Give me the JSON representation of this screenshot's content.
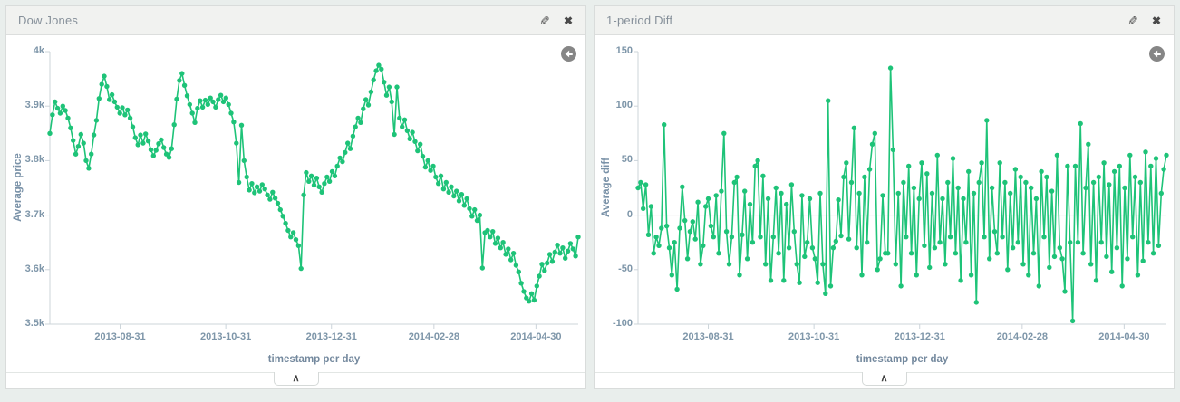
{
  "page": {
    "background": "#e9eeec",
    "panel_background": "#ffffff",
    "accent_green": "#1ec378"
  },
  "icons": {
    "edit_glyph": "✎",
    "close_glyph": "✖",
    "spy_glyph": "∧"
  },
  "panels": [
    {
      "title": "Dow Jones",
      "chart_data": {
        "type": "line",
        "series_color": "#1ec378",
        "xlabel": "timestamp per day",
        "ylabel": "Average price",
        "ylim": [
          3500,
          4000
        ],
        "grid": false,
        "zero_line": false,
        "yticks": [
          {
            "value": 4000,
            "label": "4k"
          },
          {
            "value": 3900,
            "label": "3.9k"
          },
          {
            "value": 3800,
            "label": "3.8k"
          },
          {
            "value": 3700,
            "label": "3.7k"
          },
          {
            "value": 3600,
            "label": "3.6k"
          },
          {
            "value": 3500,
            "label": "3.5k"
          }
        ],
        "xticks": [
          {
            "pos": 0.133,
            "label": "2013-08-31"
          },
          {
            "pos": 0.333,
            "label": "2013-10-31"
          },
          {
            "pos": 0.533,
            "label": "2013-12-31"
          },
          {
            "pos": 0.727,
            "label": "2014-02-28"
          },
          {
            "pos": 0.92,
            "label": "2014-04-30"
          }
        ],
        "values": [
          3850,
          3884,
          3908,
          3896,
          3887,
          3900,
          3892,
          3878,
          3860,
          3837,
          3812,
          3826,
          3848,
          3832,
          3800,
          3786,
          3812,
          3847,
          3874,
          3914,
          3940,
          3955,
          3936,
          3912,
          3921,
          3908,
          3898,
          3887,
          3897,
          3884,
          3893,
          3878,
          3862,
          3842,
          3829,
          3847,
          3832,
          3849,
          3836,
          3820,
          3809,
          3819,
          3831,
          3838,
          3824,
          3812,
          3806,
          3822,
          3866,
          3913,
          3947,
          3960,
          3938,
          3919,
          3903,
          3887,
          3870,
          3896,
          3910,
          3898,
          3911,
          3903,
          3915,
          3908,
          3898,
          3912,
          3920,
          3908,
          3915,
          3903,
          3887,
          3871,
          3832,
          3760,
          3865,
          3800,
          3770,
          3746,
          3758,
          3741,
          3752,
          3744,
          3756,
          3748,
          3737,
          3729,
          3742,
          3731,
          3722,
          3710,
          3698,
          3685,
          3672,
          3660,
          3668,
          3655,
          3644,
          3602,
          3737,
          3778,
          3762,
          3772,
          3755,
          3768,
          3752,
          3742,
          3758,
          3770,
          3762,
          3780,
          3772,
          3790,
          3805,
          3798,
          3815,
          3832,
          3822,
          3845,
          3862,
          3878,
          3870,
          3895,
          3912,
          3902,
          3926,
          3948,
          3965,
          3975,
          3968,
          3944,
          3920,
          3935,
          3908,
          3848,
          3935,
          3878,
          3862,
          3875,
          3855,
          3840,
          3852,
          3835,
          3818,
          3830,
          3808,
          3788,
          3800,
          3782,
          3790,
          3770,
          3758,
          3772,
          3748,
          3760,
          3742,
          3752,
          3735,
          3744,
          3726,
          3738,
          3718,
          3730,
          3712,
          3698,
          3710,
          3690,
          3700,
          3603,
          3668,
          3672,
          3660,
          3670,
          3648,
          3658,
          3640,
          3650,
          3628,
          3638,
          3618,
          3630,
          3608,
          3596,
          3575,
          3560,
          3548,
          3542,
          3556,
          3544,
          3570,
          3588,
          3610,
          3598,
          3612,
          3628,
          3615,
          3632,
          3645,
          3630,
          3640,
          3621,
          3634,
          3648,
          3638,
          3625,
          3660
        ]
      }
    },
    {
      "title": "1-period Diff",
      "chart_data": {
        "type": "line",
        "series_color": "#1ec378",
        "xlabel": "timestamp per day",
        "ylabel": "Average diff",
        "ylim": [
          -100,
          150
        ],
        "grid": false,
        "zero_line": true,
        "yticks": [
          {
            "value": 150,
            "label": "150"
          },
          {
            "value": 100,
            "label": "100"
          },
          {
            "value": 50,
            "label": "50"
          },
          {
            "value": 0,
            "label": "0"
          },
          {
            "value": -50,
            "label": "-50"
          },
          {
            "value": -100,
            "label": "-100"
          }
        ],
        "xticks": [
          {
            "pos": 0.133,
            "label": "2013-08-31"
          },
          {
            "pos": 0.333,
            "label": "2013-10-31"
          },
          {
            "pos": 0.533,
            "label": "2013-12-31"
          },
          {
            "pos": 0.727,
            "label": "2014-02-28"
          },
          {
            "pos": 0.92,
            "label": "2014-04-30"
          }
        ],
        "values": [
          25,
          30,
          6,
          28,
          -18,
          8,
          -35,
          -20,
          -28,
          -12,
          83,
          -10,
          -30,
          -55,
          -25,
          -68,
          -12,
          26,
          -5,
          -40,
          -15,
          -6,
          -22,
          12,
          -45,
          -28,
          8,
          15,
          -10,
          -20,
          18,
          -35,
          22,
          75,
          -15,
          -45,
          -20,
          30,
          35,
          -55,
          -18,
          22,
          -40,
          10,
          -25,
          45,
          50,
          -20,
          36,
          -45,
          15,
          -60,
          -20,
          25,
          -35,
          20,
          -60,
          10,
          -30,
          28,
          -15,
          -45,
          -62,
          18,
          -38,
          -25,
          15,
          -30,
          -40,
          -62,
          20,
          -45,
          -72,
          105,
          -65,
          -30,
          -24,
          14,
          -19,
          35,
          48,
          -22,
          30,
          80,
          -30,
          20,
          -55,
          35,
          -25,
          42,
          65,
          75,
          -50,
          -40,
          18,
          -35,
          -35,
          135,
          60,
          -45,
          20,
          -65,
          30,
          -20,
          45,
          -35,
          25,
          -55,
          15,
          48,
          -28,
          38,
          -48,
          20,
          -30,
          55,
          -25,
          15,
          -45,
          30,
          -20,
          52,
          -35,
          25,
          -60,
          15,
          -25,
          40,
          -55,
          20,
          -80,
          30,
          48,
          -20,
          87,
          -40,
          25,
          -15,
          -35,
          48,
          -20,
          30,
          -50,
          20,
          -30,
          42,
          -25,
          35,
          -45,
          30,
          -55,
          25,
          -35,
          15,
          -65,
          40,
          -20,
          35,
          -48,
          22,
          -38,
          55,
          -30,
          -40,
          -70,
          45,
          -25,
          -97,
          45,
          -25,
          84,
          -35,
          25,
          65,
          -45,
          30,
          -60,
          35,
          -25,
          48,
          -38,
          28,
          -52,
          40,
          -30,
          45,
          -65,
          25,
          -40,
          55,
          -20,
          35,
          -55,
          30,
          -42,
          58,
          -25,
          45,
          -35,
          52,
          -28,
          20,
          42,
          55
        ]
      }
    }
  ]
}
